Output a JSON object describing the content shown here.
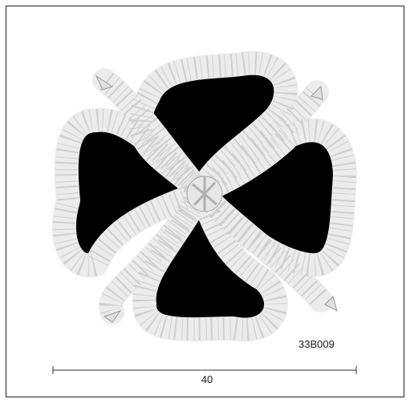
{
  "image": {
    "code": "33B009",
    "dimension": {
      "label": "40"
    }
  }
}
